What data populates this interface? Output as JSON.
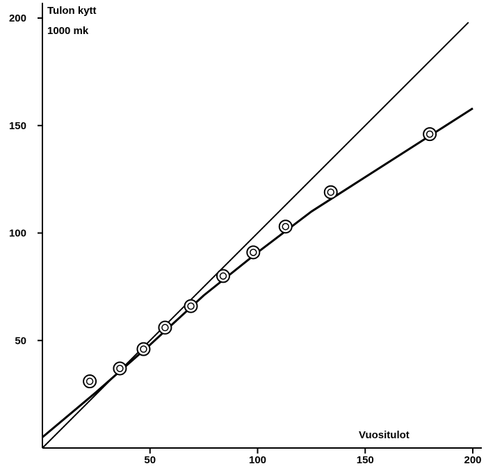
{
  "chart_data": {
    "type": "scatter",
    "title": "",
    "ylabel_lines": [
      "Tulon kytt",
      "1000 mk"
    ],
    "xlabel": "Vuositulot",
    "xlim": [
      0,
      200
    ],
    "ylim": [
      0,
      200
    ],
    "xticks": [
      50,
      100,
      150,
      200
    ],
    "yticks": [
      50,
      100,
      150,
      200
    ],
    "grid": false,
    "points": [
      {
        "x": 22,
        "y": 31
      },
      {
        "x": 36,
        "y": 37
      },
      {
        "x": 47,
        "y": 46
      },
      {
        "x": 57,
        "y": 56
      },
      {
        "x": 69,
        "y": 66
      },
      {
        "x": 84,
        "y": 80
      },
      {
        "x": 98,
        "y": 91
      },
      {
        "x": 113,
        "y": 103
      },
      {
        "x": 134,
        "y": 119
      },
      {
        "x": 180,
        "y": 146
      }
    ],
    "fitted_curve": [
      [
        0,
        5
      ],
      [
        25,
        26
      ],
      [
        50,
        48
      ],
      [
        75,
        71
      ],
      [
        100,
        91
      ],
      [
        125,
        110
      ],
      [
        150,
        126
      ],
      [
        175,
        142
      ],
      [
        200,
        158
      ]
    ],
    "reference_line": [
      [
        0,
        0
      ],
      [
        198,
        198
      ]
    ],
    "colors": {
      "ink": "#000000",
      "background": "#ffffff"
    }
  }
}
